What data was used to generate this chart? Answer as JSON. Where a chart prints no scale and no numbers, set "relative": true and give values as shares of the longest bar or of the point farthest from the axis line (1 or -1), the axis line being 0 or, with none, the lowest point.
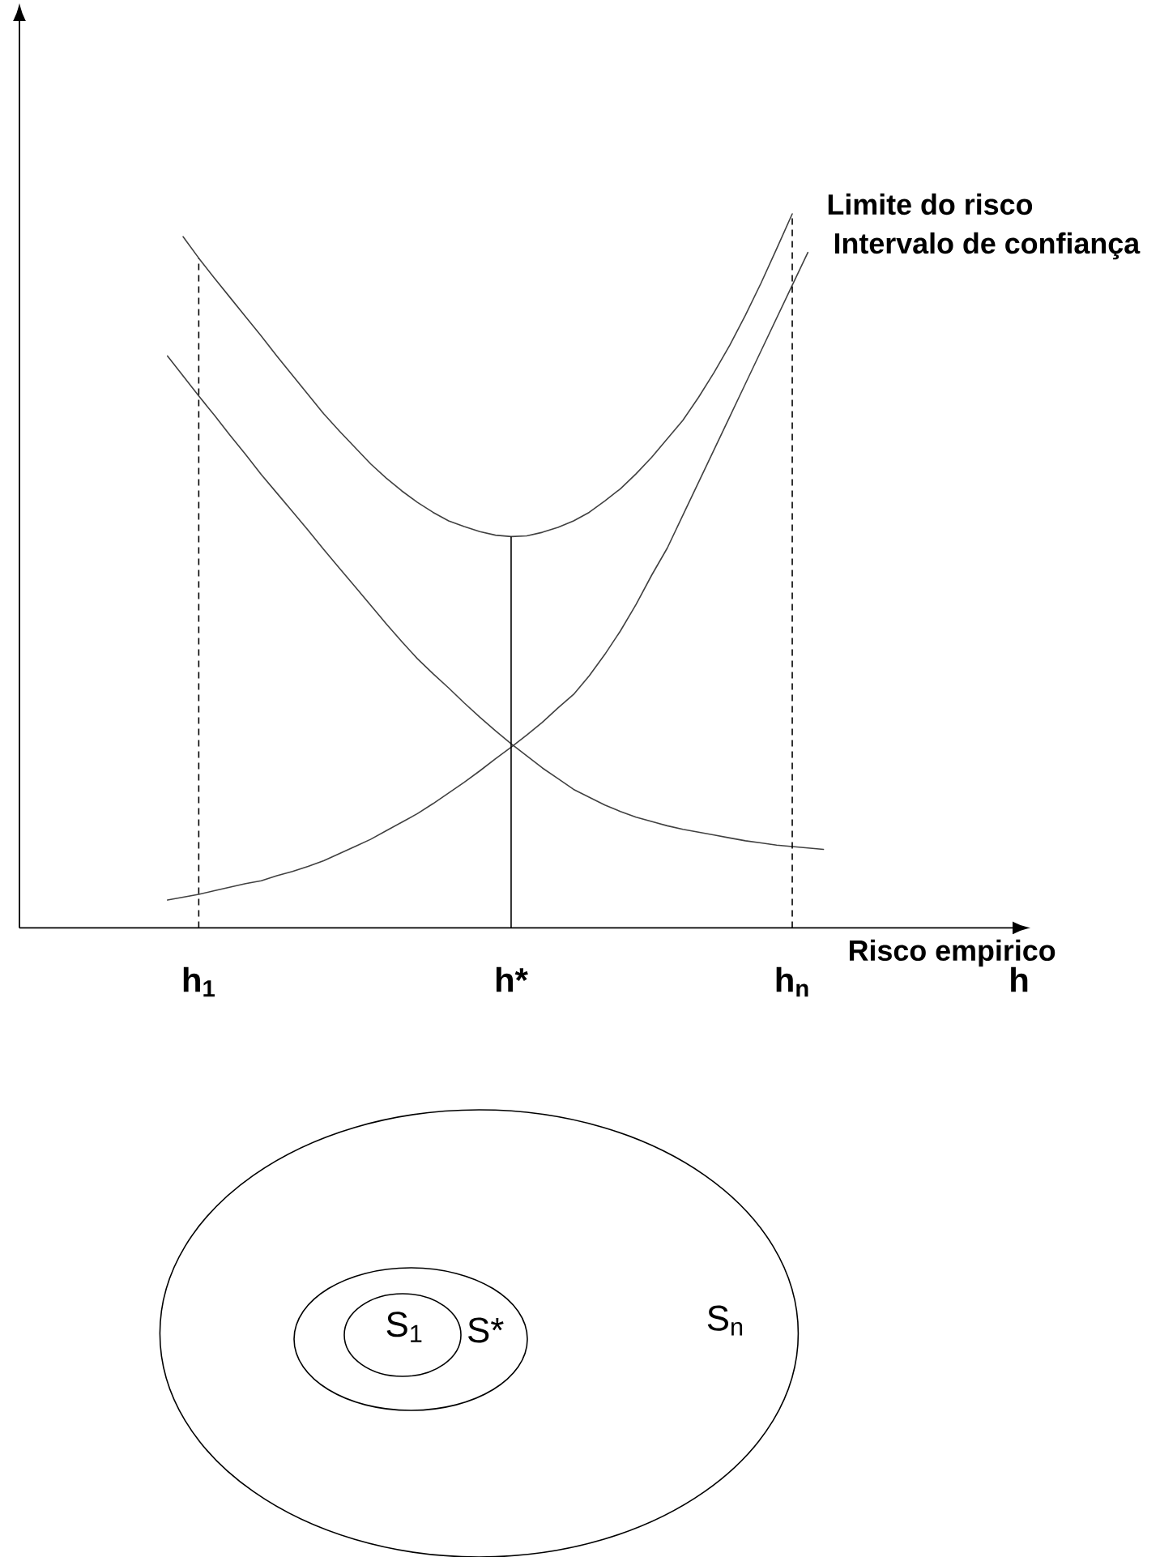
{
  "chart_data": [
    {
      "type": "line",
      "relative": true,
      "xlabel": "h",
      "categories": [
        null,
        null,
        "h$_{1}$",
        null,
        null,
        null,
        null,
        null,
        null,
        null,
        null,
        null,
        null,
        null,
        null,
        null,
        null,
        null,
        null,
        null,
        null,
        null,
        "h*",
        null,
        null,
        null,
        null,
        null,
        null,
        null,
        null,
        null,
        null,
        null,
        null,
        null,
        null,
        null,
        null,
        null,
        "h$_{n}$",
        null,
        null
      ],
      "series": [
        {
          "name": "Limite do risco",
          "color": "#404040",
          "values": [
            null,
            0.968,
            0.938,
            0.91,
            0.883,
            0.856,
            0.829,
            0.801,
            0.774,
            0.747,
            0.72,
            0.696,
            0.673,
            0.65,
            0.63,
            0.612,
            0.596,
            0.582,
            0.57,
            0.562,
            0.555,
            0.55,
            0.548,
            0.549,
            0.554,
            0.561,
            0.57,
            0.582,
            0.598,
            0.615,
            0.636,
            0.659,
            0.685,
            0.711,
            0.743,
            0.778,
            0.816,
            0.858,
            0.903,
            0.951,
            1.0,
            null,
            null
          ]
        },
        {
          "name": "Intervalo de confiança",
          "color": "#404040",
          "values": [
            0.039,
            0.043,
            0.047,
            0.052,
            0.057,
            0.062,
            0.066,
            0.073,
            0.079,
            0.086,
            0.094,
            0.104,
            0.114,
            0.124,
            0.136,
            0.148,
            0.16,
            0.174,
            0.189,
            0.204,
            0.22,
            0.237,
            0.253,
            0.27,
            0.288,
            0.308,
            0.327,
            0.353,
            0.383,
            0.416,
            0.453,
            0.494,
            0.532,
            0.578,
            0.624,
            0.67,
            0.716,
            0.762,
            0.808,
            0.854,
            0.9,
            0.946,
            null
          ]
        },
        {
          "name": "Risco empirico",
          "color": "#404040",
          "values": [
            0.801,
            0.773,
            0.745,
            0.718,
            0.69,
            0.663,
            0.635,
            0.609,
            0.583,
            0.557,
            0.53,
            0.504,
            0.478,
            0.452,
            0.426,
            0.401,
            0.377,
            0.356,
            0.336,
            0.315,
            0.295,
            0.276,
            0.258,
            0.241,
            0.224,
            0.209,
            0.194,
            0.183,
            0.172,
            0.163,
            0.155,
            0.149,
            0.143,
            0.138,
            0.134,
            0.13,
            0.126,
            0.122,
            0.119,
            0.116,
            0.114,
            0.112,
            0.11
          ]
        }
      ],
      "ref_lines": [
        {
          "axis": "x",
          "value": "h$_{1}$",
          "line_style": "dashed"
        },
        {
          "axis": "x",
          "value": "h*",
          "line_style": "solid"
        },
        {
          "axis": "x",
          "value": "h$_{n}$",
          "line_style": "dashed"
        }
      ]
    },
    {
      "type": "other",
      "annotations": [
        "S$_{1}$",
        "S*",
        "S$_{n}$"
      ]
    }
  ]
}
